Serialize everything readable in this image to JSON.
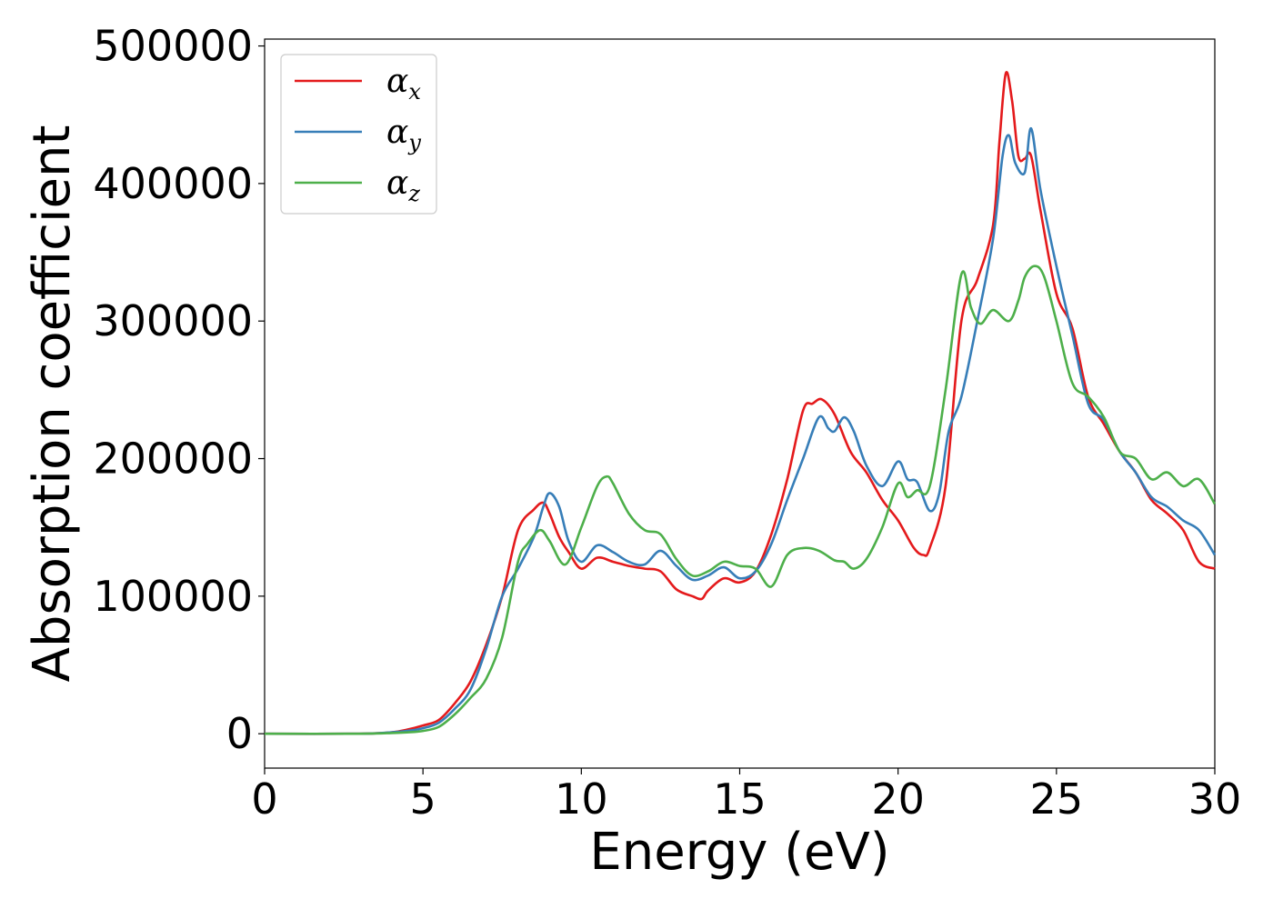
{
  "chart_data": {
    "type": "line",
    "title": "",
    "xlabel": "Energy (eV)",
    "ylabel": "Absorption coefficient",
    "xlim": [
      0,
      30
    ],
    "ylim": [
      -25000,
      505000
    ],
    "xticks": [
      "0",
      "5",
      "10",
      "15",
      "20",
      "25",
      "30"
    ],
    "yticks": [
      "0",
      "100000",
      "200000",
      "300000",
      "400000",
      "500000"
    ],
    "grid": false,
    "legend_position": "top-left",
    "series": [
      {
        "name": "αx",
        "symbol": "α",
        "subscript": "x",
        "color": "#e41a1c",
        "x": [
          0,
          3,
          4,
          4.5,
          5,
          5.5,
          6,
          6.5,
          7,
          7.5,
          8,
          8.5,
          8.8,
          9,
          9.3,
          9.6,
          10,
          10.5,
          11,
          11.5,
          12,
          12.5,
          13,
          13.5,
          13.8,
          14,
          14.5,
          15,
          15.5,
          16,
          16.5,
          17,
          17.3,
          17.6,
          18,
          18.5,
          19,
          19.5,
          20,
          20.5,
          20.8,
          21,
          21.5,
          22,
          22.5,
          23,
          23.2,
          23.4,
          23.6,
          23.8,
          24,
          24.2,
          24.5,
          25,
          25.5,
          26,
          26.5,
          27,
          27.5,
          28,
          28.5,
          29,
          29.5,
          30
        ],
        "y": [
          0,
          0,
          1000,
          3000,
          6000,
          10000,
          22000,
          38000,
          65000,
          100000,
          148000,
          163000,
          168000,
          160000,
          143000,
          132000,
          120000,
          128000,
          125000,
          122000,
          120000,
          118000,
          105000,
          100000,
          98000,
          104000,
          113000,
          110000,
          118000,
          145000,
          185000,
          235000,
          240000,
          243000,
          232000,
          205000,
          190000,
          170000,
          155000,
          135000,
          130000,
          135000,
          180000,
          300000,
          330000,
          370000,
          430000,
          480000,
          460000,
          420000,
          418000,
          420000,
          380000,
          320000,
          295000,
          245000,
          225000,
          205000,
          190000,
          170000,
          160000,
          148000,
          125000,
          120000
        ]
      },
      {
        "name": "αy",
        "symbol": "α",
        "subscript": "y",
        "color": "#377eb8",
        "x": [
          0,
          3,
          4,
          4.5,
          5,
          5.5,
          6,
          6.5,
          7,
          7.5,
          8,
          8.5,
          8.8,
          9,
          9.3,
          9.6,
          10,
          10.5,
          11,
          11.5,
          12,
          12.5,
          13,
          13.5,
          14,
          14.5,
          15,
          15.5,
          16,
          16.5,
          17,
          17.5,
          17.8,
          18,
          18.3,
          18.6,
          19,
          19.5,
          20,
          20.3,
          20.6,
          21,
          21.3,
          21.6,
          22,
          22.5,
          23,
          23.3,
          23.5,
          23.7,
          24,
          24.2,
          24.5,
          25,
          25.5,
          26,
          26.5,
          27,
          27.5,
          28,
          28.5,
          29,
          29.5,
          30
        ],
        "y": [
          0,
          0,
          1000,
          2000,
          4000,
          8000,
          18000,
          32000,
          62000,
          100000,
          120000,
          143000,
          165000,
          175000,
          165000,
          140000,
          125000,
          137000,
          132000,
          125000,
          123000,
          133000,
          122000,
          112000,
          115000,
          121000,
          113000,
          118000,
          138000,
          170000,
          200000,
          230000,
          222000,
          220000,
          230000,
          220000,
          195000,
          180000,
          198000,
          185000,
          183000,
          162000,
          175000,
          220000,
          245000,
          300000,
          360000,
          420000,
          435000,
          415000,
          408000,
          440000,
          395000,
          340000,
          290000,
          240000,
          228000,
          205000,
          190000,
          172000,
          165000,
          155000,
          148000,
          130000
        ]
      },
      {
        "name": "αz",
        "symbol": "α",
        "subscript": "z",
        "color": "#4daf4a",
        "x": [
          0,
          3,
          4,
          4.5,
          5,
          5.5,
          6,
          6.5,
          7,
          7.5,
          8,
          8.3,
          8.7,
          9,
          9.5,
          10,
          10.5,
          10.8,
          11,
          11.5,
          12,
          12.5,
          13,
          13.5,
          14,
          14.5,
          15,
          15.5,
          16,
          16.5,
          17,
          17.5,
          18,
          18.3,
          18.6,
          19,
          19.5,
          20,
          20.3,
          20.6,
          21,
          21.5,
          22,
          22.3,
          22.6,
          23,
          23.5,
          23.8,
          24,
          24.3,
          24.6,
          25,
          25.5,
          26,
          26.5,
          27,
          27.5,
          28,
          28.5,
          29,
          29.5,
          30
        ],
        "y": [
          0,
          0,
          500,
          1000,
          2000,
          5000,
          14000,
          26000,
          40000,
          70000,
          125000,
          138000,
          148000,
          140000,
          123000,
          150000,
          180000,
          187000,
          182000,
          160000,
          148000,
          145000,
          127000,
          115000,
          118000,
          125000,
          122000,
          120000,
          107000,
          130000,
          135000,
          133000,
          126000,
          125000,
          120000,
          127000,
          150000,
          182000,
          172000,
          177000,
          180000,
          250000,
          334000,
          310000,
          298000,
          308000,
          300000,
          315000,
          332000,
          340000,
          333000,
          300000,
          255000,
          245000,
          230000,
          205000,
          200000,
          185000,
          190000,
          180000,
          185000,
          167000
        ]
      }
    ]
  }
}
